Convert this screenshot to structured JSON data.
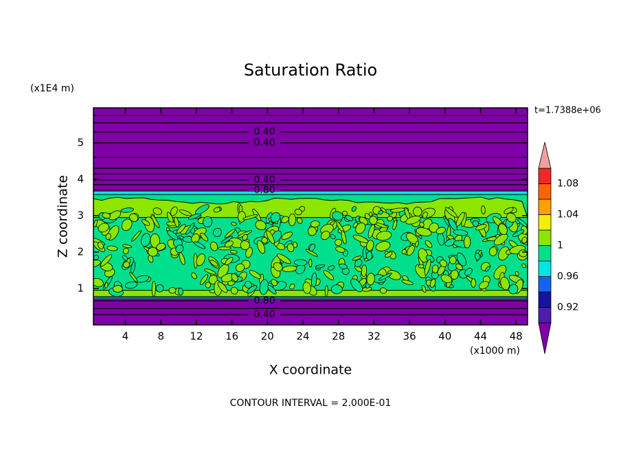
{
  "chart_data": {
    "type": "contour",
    "title": "Saturation Ratio",
    "x_label": "X coordinate",
    "y_label": "Z coordinate",
    "x_unit": "(x1000 m)",
    "y_unit": "(x1E4 m)",
    "time_label": "t=1.7388e+06",
    "footer": "CONTOUR INTERVAL = 2.000E-01",
    "xlim": [
      0.4,
      49.3
    ],
    "xticks": [
      4,
      8,
      12,
      16,
      20,
      24,
      28,
      32,
      36,
      40,
      44,
      48
    ],
    "ylim": [
      0,
      5.96
    ],
    "yticks": [
      1,
      2,
      3,
      4,
      5
    ],
    "contour_labels": [
      {
        "value": 0.4,
        "label": "0.40",
        "x": 18.2,
        "z": 5.3
      },
      {
        "value": 0.4,
        "label": "0.40",
        "x": 18.2,
        "z": 5.0
      },
      {
        "value": 0.4,
        "label": "0.40",
        "x": 18.2,
        "z": 3.98
      },
      {
        "value": 0.8,
        "label": "0.80",
        "x": 18.2,
        "z": 3.7
      },
      {
        "value": 0.8,
        "label": "0.80",
        "x": 18.2,
        "z": 0.66
      },
      {
        "value": 0.4,
        "label": "0.40",
        "x": 18.2,
        "z": 0.28
      }
    ],
    "colorbar": {
      "clim": [
        0.9,
        1.1
      ],
      "ticks": [
        0.92,
        0.96,
        1,
        1.04,
        1.08
      ],
      "colors": [
        "#4b1fa8",
        "#1414a0",
        "#1464f0",
        "#00e6e6",
        "#00e08c",
        "#8ce600",
        "#f0f000",
        "#ffa000",
        "#ff6400",
        "#f02828"
      ],
      "under_color": "#7f00a6",
      "over_color": "#f0a0a0"
    }
  }
}
